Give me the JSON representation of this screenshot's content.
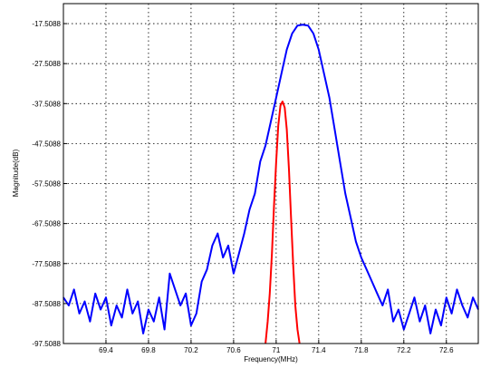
{
  "chart_data": {
    "type": "line",
    "xlabel": "Frequency(MHz)",
    "ylabel": "Magnitude(dB)",
    "xlim": [
      69.0,
      72.9
    ],
    "ylim": [
      -97.5088,
      -12.5088
    ],
    "grid": true,
    "x_ticks": [
      69.4,
      69.8,
      70.2,
      70.6,
      71,
      71.4,
      71.8,
      72.2,
      72.6
    ],
    "x_tick_labels": [
      "69.4",
      "69.8",
      "70.2",
      "70.6",
      "71",
      "71.4",
      "71.8",
      "72.2",
      "72.6"
    ],
    "y_ticks": [
      -17.5088,
      -27.5088,
      -37.5088,
      -47.5088,
      -57.5088,
      -67.5088,
      -77.5088,
      -87.5088,
      -97.5088
    ],
    "y_tick_labels": [
      "-17.5088",
      "-27.5088",
      "-37.5088",
      "-47.5088",
      "-57.5088",
      "-67.5088",
      "-77.5088",
      "-87.5088",
      "-97.5088"
    ],
    "series": [
      {
        "color": "#0000ff",
        "x": [
          69.0,
          69.05,
          69.1,
          69.15,
          69.2,
          69.25,
          69.3,
          69.35,
          69.4,
          69.45,
          69.5,
          69.55,
          69.6,
          69.65,
          69.7,
          69.75,
          69.8,
          69.85,
          69.9,
          69.95,
          70.0,
          70.05,
          70.1,
          70.15,
          70.2,
          70.25,
          70.3,
          70.35,
          70.4,
          70.45,
          70.5,
          70.55,
          70.6,
          70.65,
          70.7,
          70.75,
          70.8,
          70.85,
          70.9,
          70.95,
          71.0,
          71.05,
          71.1,
          71.15,
          71.2,
          71.25,
          71.3,
          71.35,
          71.4,
          71.45,
          71.5,
          71.55,
          71.6,
          71.65,
          71.7,
          71.75,
          71.8,
          71.85,
          71.9,
          71.95,
          72.0,
          72.05,
          72.1,
          72.15,
          72.2,
          72.25,
          72.3,
          72.35,
          72.4,
          72.45,
          72.5,
          72.55,
          72.6,
          72.65,
          72.7,
          72.75,
          72.8,
          72.85,
          72.9
        ],
        "y": [
          -86,
          -88,
          -84,
          -90,
          -87,
          -92,
          -85,
          -89,
          -86,
          -93,
          -88,
          -91,
          -84,
          -90,
          -87,
          -95,
          -89,
          -92,
          -86,
          -94,
          -80,
          -84,
          -88,
          -85,
          -93,
          -90,
          -82,
          -79,
          -73,
          -70,
          -76,
          -73,
          -80,
          -75,
          -70,
          -64,
          -60,
          -52,
          -48,
          -42,
          -36,
          -30,
          -24,
          -20,
          -18,
          -17.8,
          -18,
          -20,
          -24,
          -30,
          -36,
          -44,
          -52,
          -60,
          -66,
          -72,
          -76,
          -79,
          -82,
          -85,
          -88,
          -84,
          -92,
          -89,
          -94,
          -90,
          -86,
          -92,
          -88,
          -95,
          -89,
          -93,
          -86,
          -90,
          -84,
          -88,
          -91,
          -86,
          -89
        ]
      },
      {
        "color": "#ff0000",
        "x": [
          70.9,
          70.92,
          70.94,
          70.96,
          70.98,
          71.0,
          71.02,
          71.04,
          71.06,
          71.08,
          71.1,
          71.12,
          71.14,
          71.16,
          71.18,
          71.2,
          71.22
        ],
        "y": [
          -97.5,
          -92,
          -85,
          -75,
          -63,
          -52,
          -43,
          -38,
          -37,
          -38.5,
          -44,
          -54,
          -66,
          -78,
          -88,
          -94,
          -97.5
        ]
      }
    ]
  }
}
